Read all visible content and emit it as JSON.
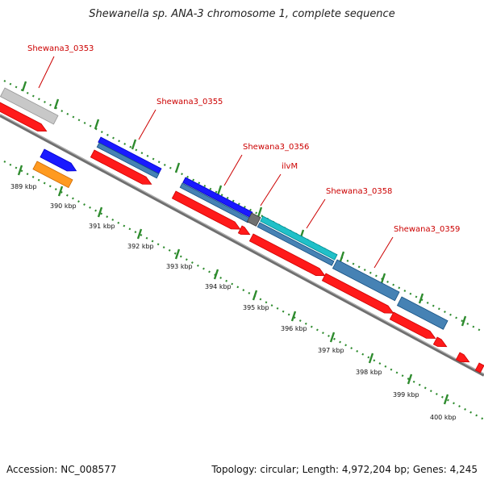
{
  "title": "Shewanella sp. ANA-3 chromosome 1, complete sequence",
  "footer": {
    "accession": "Accession: NC_008577",
    "topology": "Topology: circular; Length: 4,972,204 bp; Genes: 4,245"
  },
  "colors": {
    "backbone": "#808080",
    "tick_green": "#2e8b2e",
    "red": "#ff1a1a",
    "blue": "#1a1aff",
    "steelblue": "#4682b4",
    "cyan": "#20c0c8",
    "gray": "#c8c8c8",
    "darkgray": "#707070",
    "orange": "#ff9a20",
    "label_red": "#cc0000"
  },
  "tick_labels": [
    "389 kbp",
    "390 kbp",
    "391 kbp",
    "392 kbp",
    "393 kbp",
    "394 kbp",
    "395 kbp",
    "396 kbp",
    "397 kbp",
    "398 kbp",
    "399 kbp",
    "400 kbp"
  ],
  "gene_labels": [
    "Shewana3_0353",
    "Shewana3_0355",
    "Shewana3_0356",
    "ilvM",
    "Shewana3_0358",
    "Shewana3_0359"
  ]
}
